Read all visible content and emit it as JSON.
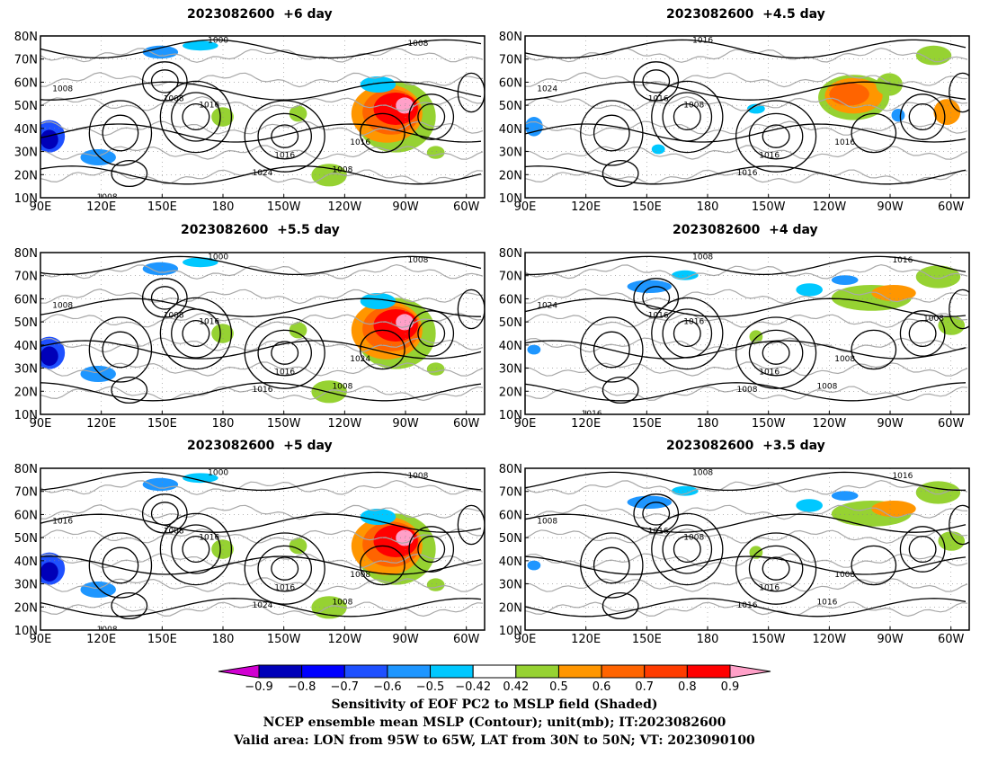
{
  "panels": [
    {
      "title": "2023082600  +6 day",
      "shading": "strong"
    },
    {
      "title": "2023082600  +4.5 day",
      "shading": "medium"
    },
    {
      "title": "2023082600  +5.5 day",
      "shading": "strong"
    },
    {
      "title": "2023082600  +4 day",
      "shading": "weak"
    },
    {
      "title": "2023082600  +5 day",
      "shading": "strong"
    },
    {
      "title": "2023082600  +3.5 day",
      "shading": "weak"
    }
  ],
  "axes": {
    "lat_labels": [
      "80N",
      "70N",
      "60N",
      "50N",
      "40N",
      "30N",
      "20N",
      "10N"
    ],
    "lon_labels": [
      "90E",
      "120E",
      "150E",
      "180",
      "150W",
      "120W",
      "90W",
      "60W"
    ]
  },
  "contour_labels": {
    "p0": [
      "1000",
      "1008",
      "1016",
      "1008",
      "1016",
      "1024",
      "1016",
      "1008",
      "1008",
      "1008"
    ],
    "p1": [
      "1016",
      "1016",
      "1008",
      "1024",
      "1016",
      "1016",
      "1016"
    ],
    "p2": [
      "1000",
      "1008",
      "1016",
      "1008",
      "1016",
      "1016",
      "1024",
      "1008",
      "1008"
    ],
    "p3": [
      "1008",
      "1016",
      "1016",
      "1024",
      "1016",
      "1008",
      "1008",
      "1016",
      "1008",
      "1016",
      "1008"
    ],
    "p4": [
      "1000",
      "1008",
      "1016",
      "1016",
      "1016",
      "1024",
      "1008",
      "1008",
      "1008",
      "1008"
    ],
    "p5": [
      "1008",
      "1016",
      "1008",
      "1008",
      "1016",
      "1016",
      "1008",
      "1016",
      "1016"
    ]
  },
  "colorbar": {
    "ticks": [
      "−0.9",
      "−0.8",
      "−0.7",
      "−0.6",
      "−0.5",
      "−0.42",
      "0.42",
      "0.5",
      "0.6",
      "0.7",
      "0.8",
      "0.9"
    ],
    "colors": [
      "#d100d1",
      "#0000b8",
      "#0000ff",
      "#1e50ff",
      "#1e96ff",
      "#00c8ff",
      "#ffffff",
      "#96d232",
      "#ff9600",
      "#ff6400",
      "#ff3c00",
      "#ff0000",
      "#ffa0c8"
    ]
  },
  "caption": {
    "line1": "Sensitivity of EOF PC2 to MSLP field (Shaded)",
    "line2": "NCEP ensemble mean MSLP (Contour); unit(mb); IT:2023082600",
    "line3": "Valid area: LON from 95W to 65W, LAT from 30N to 50N; VT: 2023090100"
  }
}
